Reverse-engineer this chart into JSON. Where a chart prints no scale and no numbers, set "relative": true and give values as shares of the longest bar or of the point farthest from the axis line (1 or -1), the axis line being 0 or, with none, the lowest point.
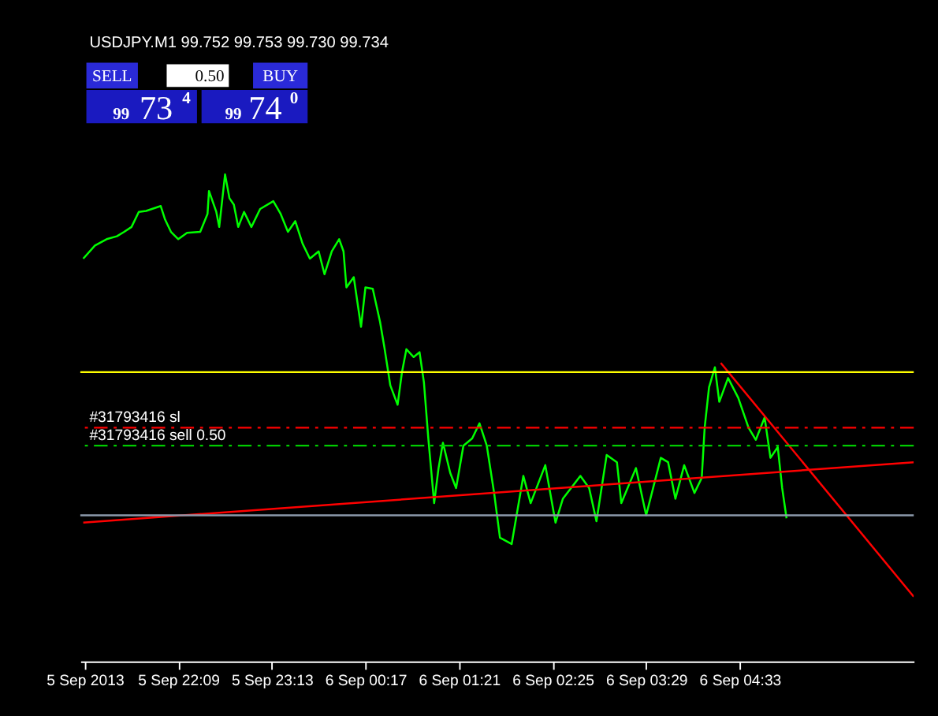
{
  "chart_data": {
    "type": "line",
    "title": "USDJPY.M1 99.752 99.753 99.730 99.734",
    "relative": true,
    "grid": false,
    "legend": false,
    "tick_labels": "x",
    "xlim": [
      "2013-09-05T21:02",
      "2013-09-06T06:32"
    ],
    "xticks": [
      {
        "value": "2013-09-05T21:05",
        "label": "5 Sep 2013"
      },
      {
        "value": "2013-09-05T22:09",
        "label": "5 Sep 22:09"
      },
      {
        "value": "2013-09-05T23:13",
        "label": "5 Sep 23:13"
      },
      {
        "value": "2013-09-06T00:17",
        "label": "6 Sep 00:17"
      },
      {
        "value": "2013-09-06T01:21",
        "label": "6 Sep 01:21"
      },
      {
        "value": "2013-09-06T02:25",
        "label": "6 Sep 02:25"
      },
      {
        "value": "2013-09-06T03:29",
        "label": "6 Sep 03:29"
      },
      {
        "value": "2013-09-06T04:33",
        "label": "6 Sep 04:33"
      }
    ],
    "series": [
      {
        "color": "#00ff00",
        "x": [
          "2013-09-05T21:04",
          "2013-09-05T21:12",
          "2013-09-05T21:20",
          "2013-09-05T21:27",
          "2013-09-05T21:32",
          "2013-09-05T21:37",
          "2013-09-05T21:42",
          "2013-09-05T21:47",
          "2013-09-05T21:57",
          "2013-09-05T22:00",
          "2013-09-05T22:04",
          "2013-09-05T22:09",
          "2013-09-05T22:15",
          "2013-09-05T22:24",
          "2013-09-05T22:29",
          "2013-09-05T22:30",
          "2013-09-05T22:35",
          "2013-09-05T22:37",
          "2013-09-05T22:41",
          "2013-09-05T22:44",
          "2013-09-05T22:47",
          "2013-09-05T22:50",
          "2013-09-05T22:54",
          "2013-09-05T22:59",
          "2013-09-05T23:05",
          "2013-09-05T23:14",
          "2013-09-05T23:19",
          "2013-09-05T23:24",
          "2013-09-05T23:29",
          "2013-09-05T23:34",
          "2013-09-05T23:39",
          "2013-09-05T23:45",
          "2013-09-05T23:49",
          "2013-09-05T23:54",
          "2013-09-05T23:59",
          "2013-09-06T00:02",
          "2013-09-06T00:04",
          "2013-09-06T00:09",
          "2013-09-06T00:14",
          "2013-09-06T00:17",
          "2013-09-06T00:22",
          "2013-09-06T00:27",
          "2013-09-06T00:30",
          "2013-09-06T00:34",
          "2013-09-06T00:39",
          "2013-09-06T00:42",
          "2013-09-06T00:45",
          "2013-09-06T00:50",
          "2013-09-06T00:54",
          "2013-09-06T00:57",
          "2013-09-06T01:00",
          "2013-09-06T01:04",
          "2013-09-06T01:07",
          "2013-09-06T01:10",
          "2013-09-06T01:15",
          "2013-09-06T01:19",
          "2013-09-06T01:24",
          "2013-09-06T01:30",
          "2013-09-06T01:35",
          "2013-09-06T01:40",
          "2013-09-06T01:45",
          "2013-09-06T01:49",
          "2013-09-06T01:57",
          "2013-09-06T02:05",
          "2013-09-06T02:10",
          "2013-09-06T02:20",
          "2013-09-06T02:27",
          "2013-09-06T02:32",
          "2013-09-06T02:44",
          "2013-09-06T02:50",
          "2013-09-06T02:55",
          "2013-09-06T03:02",
          "2013-09-06T03:09",
          "2013-09-06T03:12",
          "2013-09-06T03:22",
          "2013-09-06T03:29",
          "2013-09-06T03:39",
          "2013-09-06T03:44",
          "2013-09-06T03:49",
          "2013-09-06T03:55",
          "2013-09-06T04:02",
          "2013-09-06T04:07",
          "2013-09-06T04:09",
          "2013-09-06T04:12",
          "2013-09-06T04:16",
          "2013-09-06T04:19",
          "2013-09-06T04:25",
          "2013-09-06T04:32",
          "2013-09-06T04:39",
          "2013-09-06T04:44",
          "2013-09-06T04:50",
          "2013-09-06T04:54",
          "2013-09-06T04:59",
          "2013-09-06T05:02",
          "2013-09-06T05:05"
        ],
        "values": [
          0.827,
          0.854,
          0.867,
          0.873,
          0.882,
          0.892,
          0.923,
          0.925,
          0.935,
          0.907,
          0.882,
          0.867,
          0.88,
          0.882,
          0.919,
          0.966,
          0.923,
          0.892,
          1.0,
          0.951,
          0.938,
          0.892,
          0.923,
          0.892,
          0.929,
          0.945,
          0.919,
          0.882,
          0.904,
          0.858,
          0.827,
          0.842,
          0.795,
          0.842,
          0.867,
          0.842,
          0.768,
          0.789,
          0.687,
          0.768,
          0.765,
          0.697,
          0.644,
          0.567,
          0.527,
          0.594,
          0.641,
          0.625,
          0.635,
          0.573,
          0.458,
          0.325,
          0.397,
          0.449,
          0.387,
          0.356,
          0.443,
          0.458,
          0.489,
          0.443,
          0.346,
          0.254,
          0.241,
          0.381,
          0.325,
          0.403,
          0.285,
          0.334,
          0.381,
          0.356,
          0.288,
          0.424,
          0.409,
          0.325,
          0.397,
          0.3,
          0.418,
          0.409,
          0.334,
          0.403,
          0.346,
          0.377,
          0.48,
          0.563,
          0.604,
          0.533,
          0.582,
          0.541,
          0.48,
          0.455,
          0.501,
          0.418,
          0.44,
          0.356,
          0.294
        ]
      },
      {
        "color": "#ff0000",
        "x": [
          "2013-09-05T21:04",
          "2013-09-06T06:32"
        ],
        "values": [
          0.285,
          0.409
        ]
      },
      {
        "color": "#ff0000",
        "x": [
          "2013-09-06T04:20",
          "2013-09-06T06:32"
        ],
        "values": [
          0.613,
          0.133
        ]
      }
    ],
    "ref_lines": [
      {
        "axis": "y",
        "value": 0.594,
        "label": null,
        "color": "#ffff00",
        "line_style": "solid"
      },
      {
        "axis": "y",
        "value": 0.48,
        "label": "#31793416 sl",
        "color": "#ff0000",
        "line_style": "dashed"
      },
      {
        "axis": "y",
        "value": 0.443,
        "label": "#31793416 sell 0.50",
        "color": "#00cc00",
        "line_style": "dashed"
      },
      {
        "axis": "y",
        "value": 0.3,
        "label": null,
        "color": "#8c9aab",
        "line_style": "solid"
      }
    ],
    "annotations": [
      "SELL",
      "0.50",
      "BUY",
      "99",
      "73",
      "4",
      "99",
      "74",
      "0"
    ]
  }
}
